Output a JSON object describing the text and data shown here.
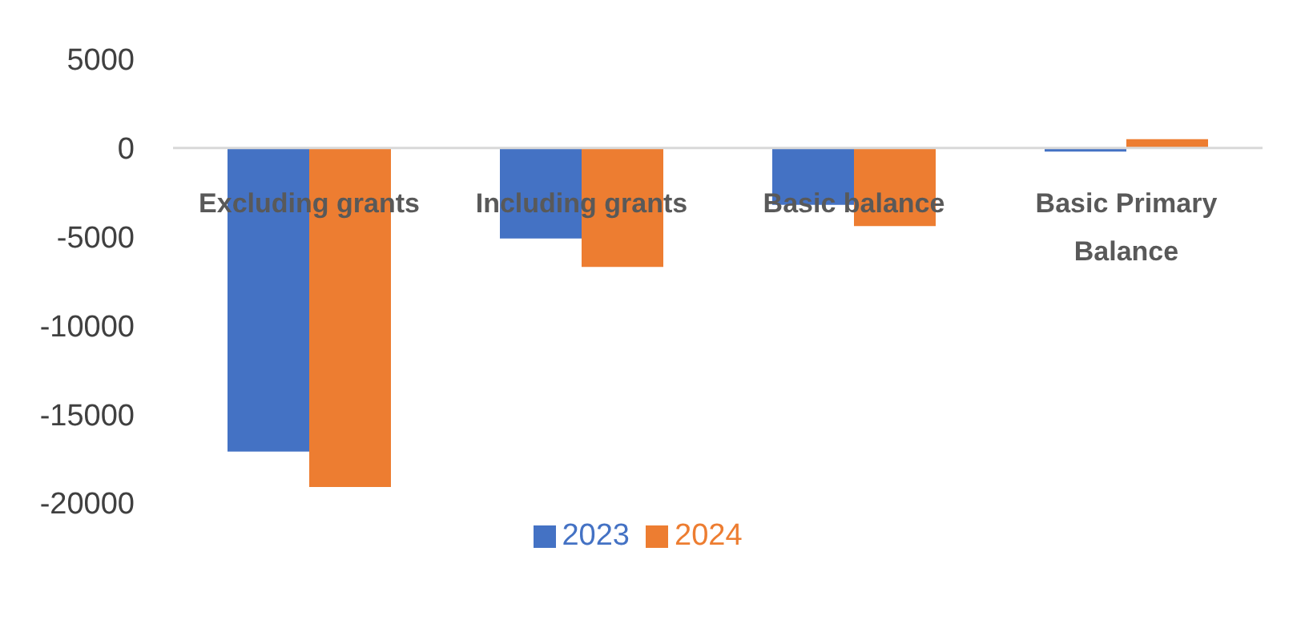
{
  "chart_data": {
    "type": "bar",
    "categories": [
      "Excluding grants",
      "Including grants",
      "Basic balance",
      "Basic Primary Balance"
    ],
    "series": [
      {
        "name": "2023",
        "color": "#4472c4",
        "values": [
          -17100,
          -5100,
          -3200,
          -200
        ]
      },
      {
        "name": "2024",
        "color": "#ed7d31",
        "values": [
          -19100,
          -6700,
          -4400,
          500
        ]
      }
    ],
    "ylim": [
      -20000,
      5000
    ],
    "yticks": [
      -20000,
      -15000,
      -10000,
      -5000,
      0,
      5000
    ],
    "grid": false,
    "legend": "bottom"
  }
}
